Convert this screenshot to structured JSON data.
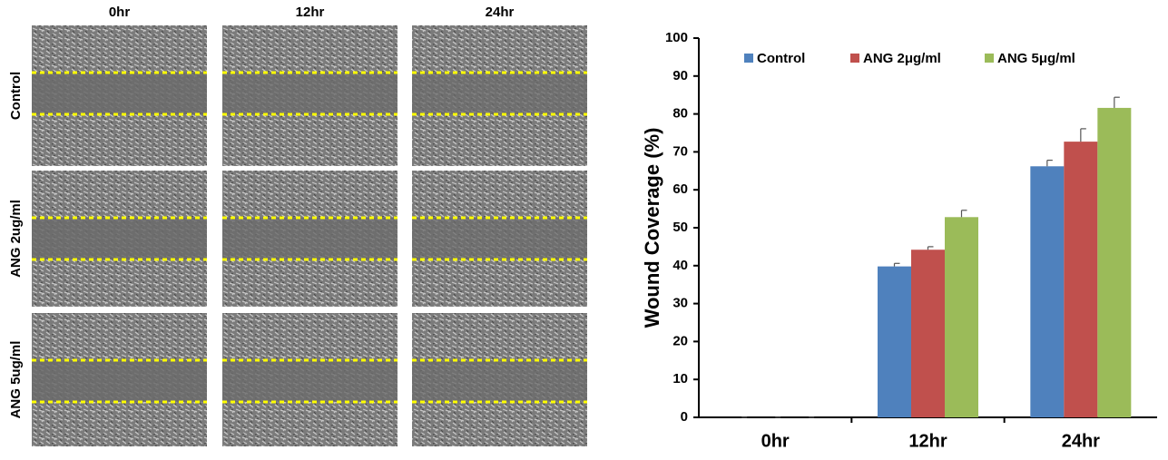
{
  "image_panel": {
    "columns": [
      "0hr",
      "12hr",
      "24hr"
    ],
    "rows": [
      "Control",
      "ANG 2ug/ml",
      "ANG 5ug/ml"
    ]
  },
  "chart_data": {
    "type": "bar",
    "y_label": "Wound Coverage (%)",
    "categories": [
      "0hr",
      "12hr",
      "24hr"
    ],
    "series": [
      {
        "name": "Control",
        "color": "#4f81bd",
        "values": [
          0,
          39.8,
          66.2
        ],
        "errors": [
          0,
          0.8,
          1.6
        ]
      },
      {
        "name": "ANG 2μg/ml",
        "color": "#c0504d",
        "values": [
          0,
          44.2,
          72.7
        ],
        "errors": [
          0,
          0.8,
          3.4
        ]
      },
      {
        "name": "ANG 5μg/ml",
        "color": "#9bbb59",
        "values": [
          0,
          52.8,
          81.6
        ],
        "errors": [
          0,
          1.8,
          2.8
        ]
      }
    ],
    "ylim": [
      0,
      100
    ],
    "yticks": [
      0,
      10,
      20,
      30,
      40,
      50,
      60,
      70,
      80,
      90,
      100
    ],
    "grid": false,
    "legend": "top"
  }
}
